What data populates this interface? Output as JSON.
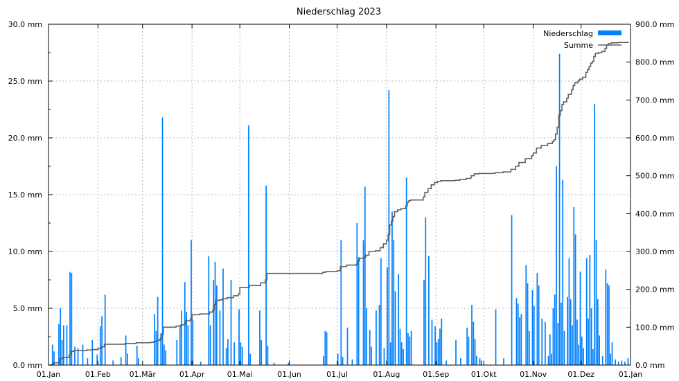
{
  "chart_data": {
    "type": "bar",
    "title": "Niederschlag 2023",
    "x_tick_labels": [
      "01.Jan",
      "01.Feb",
      "01.Mär",
      "01.Apr",
      "01.Mai",
      "01.Jun",
      "01.Jul",
      "01.Aug",
      "01.Sep",
      "01.Okt",
      "01.Nov",
      "01.Dez",
      "01.Jan"
    ],
    "month_start_days": [
      0,
      31,
      59,
      90,
      120,
      151,
      181,
      212,
      243,
      273,
      304,
      334,
      365
    ],
    "x_range_days": [
      0,
      365
    ],
    "y_left": {
      "range": [
        0,
        30
      ],
      "ticks": [
        0,
        5,
        10,
        15,
        20,
        25,
        30
      ],
      "tick_labels": [
        "0.0 mm",
        "5.0 mm",
        "10.0 mm",
        "15.0 mm",
        "20.0 mm",
        "25.0 mm",
        "30.0 mm"
      ]
    },
    "y_right": {
      "range": [
        0,
        900
      ],
      "ticks": [
        0,
        100,
        200,
        300,
        400,
        500,
        600,
        700,
        800,
        900
      ],
      "tick_labels": [
        "0.0 mm",
        "100.0 mm",
        "200.0 mm",
        "300.0 mm",
        "400.0 mm",
        "500.0 mm",
        "600.0 mm",
        "700.0 mm",
        "800.0 mm",
        "900.0 mm"
      ]
    },
    "grid": true,
    "legend_position": "top-right",
    "series": [
      {
        "name": "Niederschlag",
        "kind": "bar",
        "axis": "left",
        "color": "#0080ff",
        "points": [
          [
            2,
            1.8
          ],
          [
            3,
            1.2
          ],
          [
            6,
            3.6
          ],
          [
            7,
            5.0
          ],
          [
            8,
            2.2
          ],
          [
            9,
            3.5
          ],
          [
            11,
            3.5
          ],
          [
            13,
            8.2
          ],
          [
            14,
            8.1
          ],
          [
            16,
            1.6
          ],
          [
            18,
            1.5
          ],
          [
            21,
            1.8
          ],
          [
            24,
            0.6
          ],
          [
            27,
            2.2
          ],
          [
            30,
            0.9
          ],
          [
            32,
            3.4
          ],
          [
            33,
            4.3
          ],
          [
            35,
            6.2
          ],
          [
            40,
            0.4
          ],
          [
            45,
            0.7
          ],
          [
            48,
            2.6
          ],
          [
            49,
            1.0
          ],
          [
            55,
            1.7
          ],
          [
            56,
            0.6
          ],
          [
            66,
            4.5
          ],
          [
            67,
            3.0
          ],
          [
            68,
            6.0
          ],
          [
            70,
            2.8
          ],
          [
            71,
            21.8
          ],
          [
            72,
            1.8
          ],
          [
            73,
            1.3
          ],
          [
            80,
            2.2
          ],
          [
            82,
            3.5
          ],
          [
            83,
            4.8
          ],
          [
            85,
            7.3
          ],
          [
            86,
            4.7
          ],
          [
            87,
            3.5
          ],
          [
            89,
            11.0
          ],
          [
            90,
            4.0
          ],
          [
            95,
            0.3
          ],
          [
            100,
            9.6
          ],
          [
            101,
            3.5
          ],
          [
            103,
            7.5
          ],
          [
            104,
            9.1
          ],
          [
            105,
            7.0
          ],
          [
            107,
            4.8
          ],
          [
            109,
            8.5
          ],
          [
            111,
            1.5
          ],
          [
            112,
            2.3
          ],
          [
            114,
            7.5
          ],
          [
            116,
            2.0
          ],
          [
            119,
            4.9
          ],
          [
            120,
            2.0
          ],
          [
            121,
            1.6
          ],
          [
            125,
            21.1
          ],
          [
            126,
            1.0
          ],
          [
            132,
            4.8
          ],
          [
            133,
            2.2
          ],
          [
            136,
            15.8
          ],
          [
            137,
            1.7
          ],
          [
            141,
            0.2
          ],
          [
            150,
            0.2
          ],
          [
            172,
            0.8
          ],
          [
            173,
            3.0
          ],
          [
            174,
            2.9
          ],
          [
            181,
            1.0
          ],
          [
            183,
            11.0
          ],
          [
            184,
            0.7
          ],
          [
            187,
            3.3
          ],
          [
            190,
            0.5
          ],
          [
            193,
            12.5
          ],
          [
            194,
            9.5
          ],
          [
            197,
            11.0
          ],
          [
            198,
            15.7
          ],
          [
            199,
            5.0
          ],
          [
            201,
            3.1
          ],
          [
            202,
            1.6
          ],
          [
            205,
            4.8
          ],
          [
            207,
            5.3
          ],
          [
            208,
            9.4
          ],
          [
            210,
            1.5
          ],
          [
            212,
            8.6
          ],
          [
            213,
            24.2
          ],
          [
            214,
            2.0
          ],
          [
            215,
            13.5
          ],
          [
            216,
            11.0
          ],
          [
            217,
            6.5
          ],
          [
            219,
            8.0
          ],
          [
            220,
            3.2
          ],
          [
            221,
            2.0
          ],
          [
            222,
            1.4
          ],
          [
            224,
            16.5
          ],
          [
            225,
            2.8
          ],
          [
            226,
            2.5
          ],
          [
            227,
            3.0
          ],
          [
            235,
            7.5
          ],
          [
            236,
            13.0
          ],
          [
            238,
            9.6
          ],
          [
            240,
            4.0
          ],
          [
            242,
            3.4
          ],
          [
            243,
            2.0
          ],
          [
            244,
            2.3
          ],
          [
            245,
            3.2
          ],
          [
            246,
            4.1
          ],
          [
            249,
            0.4
          ],
          [
            255,
            2.2
          ],
          [
            258,
            0.6
          ],
          [
            262,
            3.3
          ],
          [
            263,
            2.5
          ],
          [
            265,
            5.3
          ],
          [
            266,
            3.8
          ],
          [
            267,
            2.3
          ],
          [
            268,
            0.8
          ],
          [
            270,
            0.6
          ],
          [
            271,
            0.4
          ],
          [
            280,
            4.9
          ],
          [
            285,
            0.6
          ],
          [
            290,
            13.2
          ],
          [
            293,
            5.9
          ],
          [
            294,
            5.4
          ],
          [
            295,
            4.2
          ],
          [
            296,
            4.5
          ],
          [
            299,
            8.8
          ],
          [
            300,
            7.2
          ],
          [
            301,
            3.0
          ],
          [
            303,
            6.6
          ],
          [
            304,
            5.2
          ],
          [
            306,
            8.1
          ],
          [
            307,
            7.0
          ],
          [
            309,
            4.1
          ],
          [
            311,
            3.8
          ],
          [
            313,
            0.8
          ],
          [
            314,
            2.7
          ],
          [
            315,
            1.0
          ],
          [
            316,
            5.0
          ],
          [
            317,
            6.2
          ],
          [
            318,
            17.5
          ],
          [
            319,
            3.7
          ],
          [
            320,
            27.4
          ],
          [
            321,
            5.5
          ],
          [
            322,
            16.3
          ],
          [
            323,
            3.0
          ],
          [
            325,
            6.0
          ],
          [
            326,
            9.4
          ],
          [
            327,
            5.8
          ],
          [
            328,
            3.5
          ],
          [
            329,
            13.9
          ],
          [
            330,
            11.5
          ],
          [
            331,
            4.0
          ],
          [
            332,
            1.8
          ],
          [
            333,
            8.2
          ],
          [
            334,
            2.5
          ],
          [
            335,
            1.5
          ],
          [
            337,
            9.4
          ],
          [
            338,
            4.1
          ],
          [
            339,
            9.7
          ],
          [
            340,
            5.0
          ],
          [
            341,
            1.4
          ],
          [
            342,
            23.0
          ],
          [
            343,
            11.0
          ],
          [
            344,
            5.8
          ],
          [
            345,
            2.6
          ],
          [
            347,
            0.8
          ],
          [
            349,
            8.4
          ],
          [
            350,
            7.2
          ],
          [
            351,
            7.0
          ],
          [
            352,
            1.0
          ],
          [
            353,
            2.0
          ],
          [
            355,
            0.5
          ],
          [
            357,
            0.3
          ],
          [
            359,
            0.4
          ],
          [
            361,
            0.3
          ],
          [
            363,
            0.6
          ]
        ]
      },
      {
        "name": "Summe",
        "kind": "line",
        "axis": "right",
        "color": "#606060",
        "points": [
          [
            0,
            0
          ],
          [
            2,
            2
          ],
          [
            3,
            6
          ],
          [
            6,
            7
          ],
          [
            7,
            17
          ],
          [
            9,
            20
          ],
          [
            13,
            27
          ],
          [
            14,
            36
          ],
          [
            16,
            38
          ],
          [
            21,
            38
          ],
          [
            24,
            40
          ],
          [
            27,
            41
          ],
          [
            31,
            44
          ],
          [
            33,
            48
          ],
          [
            35,
            55
          ],
          [
            45,
            55
          ],
          [
            48,
            57
          ],
          [
            55,
            59
          ],
          [
            64,
            60
          ],
          [
            66,
            62
          ],
          [
            68,
            65
          ],
          [
            70,
            70
          ],
          [
            71,
            80
          ],
          [
            72,
            100
          ],
          [
            75,
            100
          ],
          [
            80,
            103
          ],
          [
            83,
            106
          ],
          [
            85,
            108
          ],
          [
            86,
            117
          ],
          [
            89,
            122
          ],
          [
            90,
            133
          ],
          [
            95,
            135
          ],
          [
            100,
            135
          ],
          [
            101,
            140
          ],
          [
            103,
            145
          ],
          [
            104,
            160
          ],
          [
            105,
            170
          ],
          [
            107,
            172
          ],
          [
            109,
            175
          ],
          [
            112,
            178
          ],
          [
            116,
            183
          ],
          [
            119,
            188
          ],
          [
            120,
            205
          ],
          [
            125,
            205
          ],
          [
            126,
            210
          ],
          [
            133,
            217
          ],
          [
            136,
            225
          ],
          [
            137,
            242
          ],
          [
            150,
            242
          ],
          [
            172,
            245
          ],
          [
            174,
            247
          ],
          [
            181,
            249
          ],
          [
            183,
            260
          ],
          [
            187,
            264
          ],
          [
            193,
            266
          ],
          [
            194,
            275
          ],
          [
            195,
            282
          ],
          [
            198,
            285
          ],
          [
            199,
            290
          ],
          [
            201,
            300
          ],
          [
            205,
            302
          ],
          [
            208,
            310
          ],
          [
            210,
            320
          ],
          [
            212,
            330
          ],
          [
            213,
            345
          ],
          [
            214,
            370
          ],
          [
            215,
            380
          ],
          [
            216,
            392
          ],
          [
            217,
            405
          ],
          [
            219,
            410
          ],
          [
            221,
            413
          ],
          [
            224,
            420
          ],
          [
            225,
            430
          ],
          [
            226,
            434
          ],
          [
            227,
            436
          ],
          [
            233,
            436
          ],
          [
            235,
            444
          ],
          [
            236,
            456
          ],
          [
            238,
            466
          ],
          [
            240,
            476
          ],
          [
            242,
            482
          ],
          [
            244,
            485
          ],
          [
            246,
            487
          ],
          [
            255,
            488
          ],
          [
            258,
            490
          ],
          [
            262,
            493
          ],
          [
            265,
            500
          ],
          [
            267,
            505
          ],
          [
            270,
            506
          ],
          [
            280,
            508
          ],
          [
            285,
            510
          ],
          [
            290,
            517
          ],
          [
            293,
            525
          ],
          [
            295,
            535
          ],
          [
            299,
            545
          ],
          [
            303,
            553
          ],
          [
            304,
            560
          ],
          [
            306,
            573
          ],
          [
            309,
            580
          ],
          [
            313,
            585
          ],
          [
            316,
            590
          ],
          [
            317,
            595
          ],
          [
            318,
            610
          ],
          [
            319,
            628
          ],
          [
            320,
            660
          ],
          [
            321,
            672
          ],
          [
            322,
            688
          ],
          [
            323,
            695
          ],
          [
            325,
            705
          ],
          [
            326,
            715
          ],
          [
            328,
            727
          ],
          [
            329,
            738
          ],
          [
            330,
            745
          ],
          [
            332,
            750
          ],
          [
            333,
            755
          ],
          [
            335,
            760
          ],
          [
            337,
            773
          ],
          [
            338,
            780
          ],
          [
            339,
            788
          ],
          [
            340,
            797
          ],
          [
            341,
            802
          ],
          [
            342,
            815
          ],
          [
            343,
            823
          ],
          [
            345,
            825
          ],
          [
            347,
            828
          ],
          [
            349,
            836
          ],
          [
            350,
            845
          ],
          [
            351,
            849
          ],
          [
            353,
            851
          ],
          [
            357,
            852
          ],
          [
            364,
            852
          ]
        ]
      }
    ]
  }
}
